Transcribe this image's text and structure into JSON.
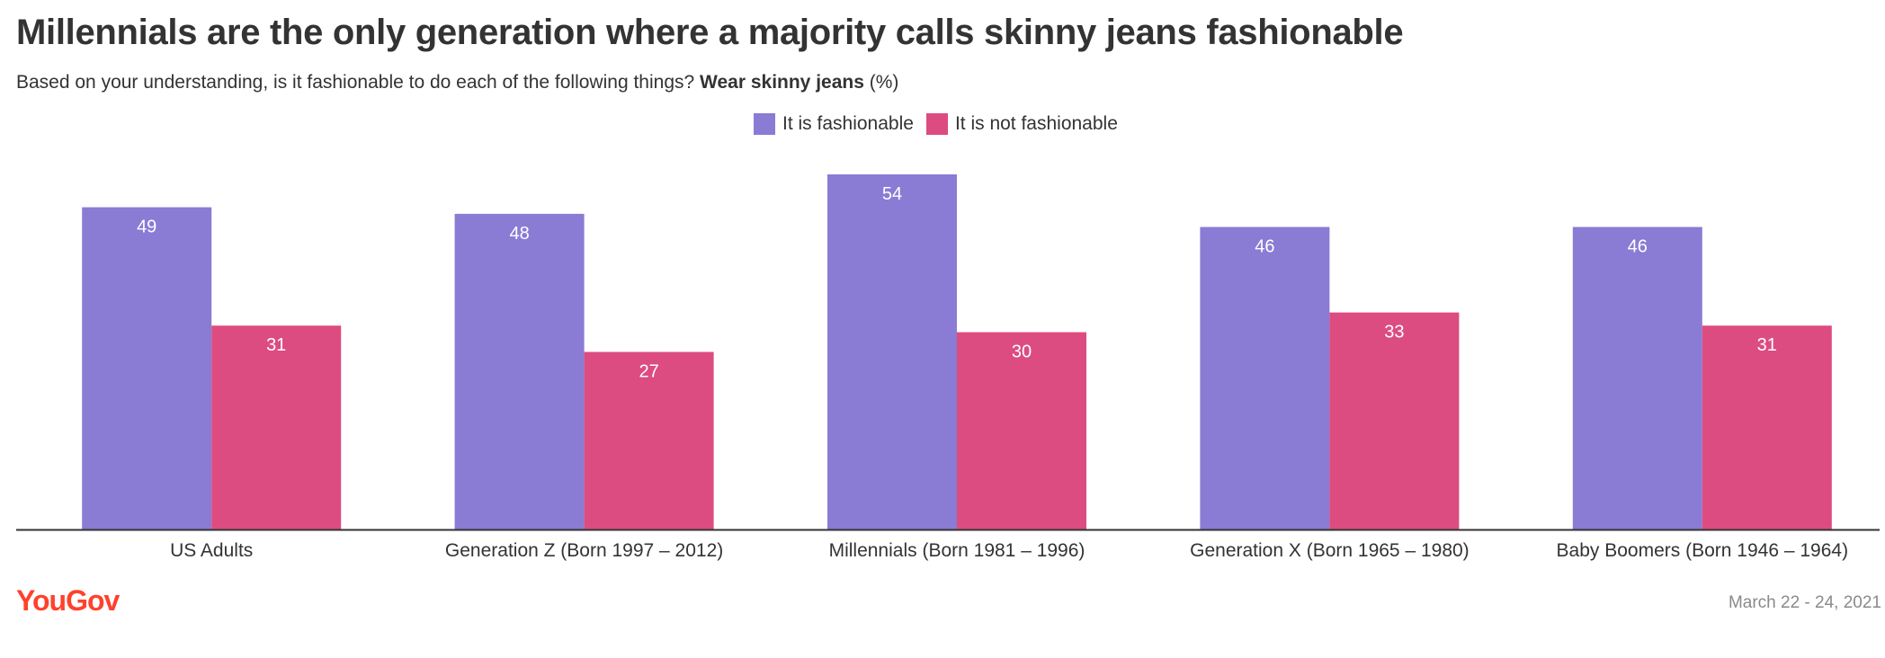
{
  "title": "Millennials are the only generation where a majority calls skinny jeans fashionable",
  "subtitle_prefix": "Based on your understanding, is it fashionable to do each of the following things?",
  "subtitle_bold": "Wear skinny jeans",
  "subtitle_suffix": "(%)",
  "brand": "YouGov",
  "date": "March 22 - 24, 2021",
  "colors": {
    "fashionable": "#8a7bd4",
    "not_fashionable": "#dc4c80",
    "brand": "#ff412c"
  },
  "chart_data": {
    "type": "bar",
    "categories": [
      "US Adults",
      "Generation Z (Born 1997 – 2012)",
      "Millennials (Born 1981 – 1996)",
      "Generation X (Born 1965 – 1980)",
      "Baby Boomers (Born 1946 – 1964)"
    ],
    "series": [
      {
        "name": "It is fashionable",
        "values": [
          49,
          48,
          54,
          46,
          46
        ]
      },
      {
        "name": "It is not fashionable",
        "values": [
          31,
          27,
          30,
          33,
          31
        ]
      }
    ],
    "ylim": [
      0,
      54
    ],
    "legend_position": "top-center",
    "grid": false
  }
}
